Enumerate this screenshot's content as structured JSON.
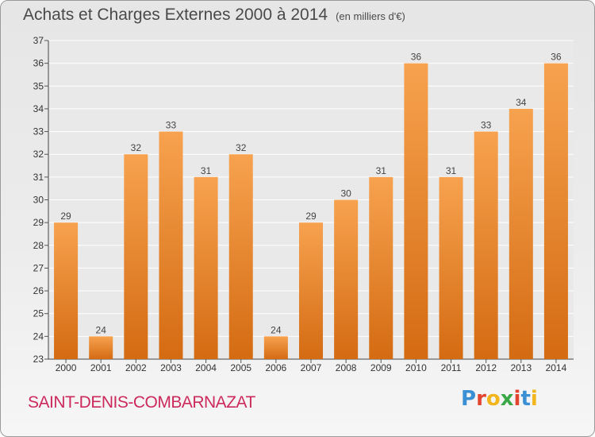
{
  "chart_data": {
    "type": "bar",
    "title": "Achats et Charges Externes 2000 à 2014",
    "subtitle": "(en milliers d'€)",
    "categories": [
      "2000",
      "2001",
      "2002",
      "2003",
      "2004",
      "2005",
      "2006",
      "2007",
      "2008",
      "2009",
      "2010",
      "2011",
      "2012",
      "2013",
      "2014"
    ],
    "values": [
      29,
      24,
      32,
      33,
      31,
      32,
      24,
      29,
      30,
      31,
      36,
      31,
      33,
      34,
      36
    ],
    "ylim": [
      23,
      37
    ],
    "yticks": [
      23,
      24,
      25,
      26,
      27,
      28,
      29,
      30,
      31,
      32,
      33,
      34,
      35,
      36,
      37
    ],
    "grid": true,
    "bar_color": "#f0903a"
  },
  "footer": {
    "commune": "SAINT-DENIS-COMBARNAZAT",
    "logo": "Proxiti"
  },
  "logo_colors": [
    "#3b8fd4",
    "#e2452f",
    "#f2b61c",
    "#3aa847",
    "#e2452f",
    "#3b8fd4",
    "#f2b61c"
  ]
}
